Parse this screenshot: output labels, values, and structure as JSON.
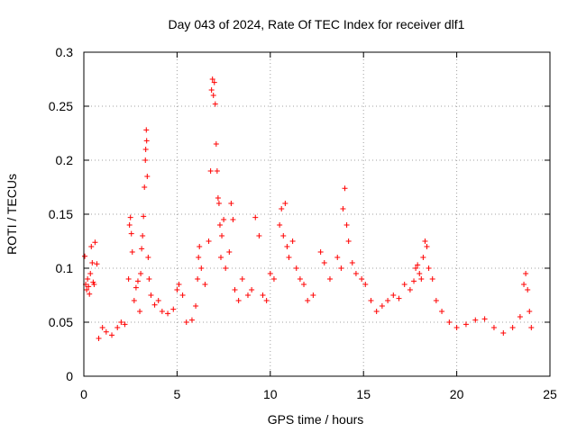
{
  "chart_data": {
    "type": "scatter",
    "title": "Day 043 of 2024, Rate Of TEC Index for receiver dlf1",
    "xlabel": "GPS time / hours",
    "ylabel": "ROTI / TECUs",
    "xlim": [
      0,
      25
    ],
    "ylim": [
      0,
      0.3
    ],
    "xticks": [
      0,
      5,
      10,
      15,
      20,
      25
    ],
    "xtick_labels": [
      "0",
      "5",
      "10",
      "15",
      "20",
      "25"
    ],
    "yticks": [
      0,
      0.05,
      0.1,
      0.15,
      0.2,
      0.25,
      0.3
    ],
    "ytick_labels": [
      "0",
      "0.05",
      "0.1",
      "0.15",
      "0.2",
      "0.25",
      "0.3"
    ],
    "grid": true,
    "marker": "+",
    "color": "#ff0000",
    "series": [
      {
        "points": [
          [
            0.05,
            0.111
          ],
          [
            0.1,
            0.085
          ],
          [
            0.15,
            0.08
          ],
          [
            0.2,
            0.09
          ],
          [
            0.25,
            0.083
          ],
          [
            0.3,
            0.076
          ],
          [
            0.35,
            0.095
          ],
          [
            0.4,
            0.12
          ],
          [
            0.45,
            0.105
          ],
          [
            0.5,
            0.087
          ],
          [
            0.55,
            0.085
          ],
          [
            0.6,
            0.124
          ],
          [
            0.7,
            0.104
          ],
          [
            0.8,
            0.035
          ],
          [
            1.0,
            0.045
          ],
          [
            1.2,
            0.041
          ],
          [
            1.5,
            0.038
          ],
          [
            1.8,
            0.045
          ],
          [
            2.0,
            0.05
          ],
          [
            2.2,
            0.048
          ],
          [
            2.4,
            0.09
          ],
          [
            2.45,
            0.14
          ],
          [
            2.5,
            0.147
          ],
          [
            2.55,
            0.132
          ],
          [
            2.6,
            0.115
          ],
          [
            2.7,
            0.07
          ],
          [
            2.8,
            0.082
          ],
          [
            2.9,
            0.088
          ],
          [
            3.0,
            0.06
          ],
          [
            3.05,
            0.095
          ],
          [
            3.1,
            0.118
          ],
          [
            3.15,
            0.13
          ],
          [
            3.2,
            0.148
          ],
          [
            3.25,
            0.175
          ],
          [
            3.3,
            0.2
          ],
          [
            3.32,
            0.21
          ],
          [
            3.35,
            0.228
          ],
          [
            3.37,
            0.218
          ],
          [
            3.4,
            0.185
          ],
          [
            3.45,
            0.11
          ],
          [
            3.5,
            0.09
          ],
          [
            3.6,
            0.075
          ],
          [
            3.8,
            0.066
          ],
          [
            4.0,
            0.07
          ],
          [
            4.2,
            0.06
          ],
          [
            4.5,
            0.058
          ],
          [
            4.8,
            0.062
          ],
          [
            5.0,
            0.08
          ],
          [
            5.1,
            0.085
          ],
          [
            5.3,
            0.075
          ],
          [
            5.5,
            0.05
          ],
          [
            5.8,
            0.052
          ],
          [
            6.0,
            0.065
          ],
          [
            6.1,
            0.09
          ],
          [
            6.15,
            0.11
          ],
          [
            6.2,
            0.12
          ],
          [
            6.3,
            0.1
          ],
          [
            6.5,
            0.085
          ],
          [
            6.7,
            0.125
          ],
          [
            6.8,
            0.19
          ],
          [
            6.85,
            0.265
          ],
          [
            6.9,
            0.275
          ],
          [
            6.95,
            0.26
          ],
          [
            7.0,
            0.272
          ],
          [
            7.05,
            0.252
          ],
          [
            7.1,
            0.215
          ],
          [
            7.15,
            0.19
          ],
          [
            7.2,
            0.165
          ],
          [
            7.25,
            0.16
          ],
          [
            7.3,
            0.14
          ],
          [
            7.35,
            0.11
          ],
          [
            7.4,
            0.13
          ],
          [
            7.5,
            0.145
          ],
          [
            7.6,
            0.1
          ],
          [
            7.8,
            0.115
          ],
          [
            7.9,
            0.16
          ],
          [
            8.0,
            0.145
          ],
          [
            8.1,
            0.08
          ],
          [
            8.3,
            0.07
          ],
          [
            8.5,
            0.09
          ],
          [
            8.8,
            0.075
          ],
          [
            9.0,
            0.08
          ],
          [
            9.2,
            0.147
          ],
          [
            9.4,
            0.13
          ],
          [
            9.6,
            0.075
          ],
          [
            9.8,
            0.07
          ],
          [
            10.0,
            0.095
          ],
          [
            10.2,
            0.09
          ],
          [
            10.5,
            0.14
          ],
          [
            10.6,
            0.155
          ],
          [
            10.7,
            0.13
          ],
          [
            10.8,
            0.16
          ],
          [
            10.9,
            0.12
          ],
          [
            11.0,
            0.11
          ],
          [
            11.2,
            0.125
          ],
          [
            11.4,
            0.1
          ],
          [
            11.6,
            0.09
          ],
          [
            11.8,
            0.085
          ],
          [
            12.0,
            0.07
          ],
          [
            12.3,
            0.075
          ],
          [
            12.7,
            0.115
          ],
          [
            12.9,
            0.105
          ],
          [
            13.2,
            0.09
          ],
          [
            13.6,
            0.11
          ],
          [
            13.8,
            0.1
          ],
          [
            13.9,
            0.155
          ],
          [
            14.0,
            0.174
          ],
          [
            14.1,
            0.14
          ],
          [
            14.2,
            0.125
          ],
          [
            14.4,
            0.105
          ],
          [
            14.6,
            0.095
          ],
          [
            14.9,
            0.09
          ],
          [
            15.1,
            0.085
          ],
          [
            15.4,
            0.07
          ],
          [
            15.7,
            0.06
          ],
          [
            16.0,
            0.065
          ],
          [
            16.3,
            0.07
          ],
          [
            16.6,
            0.075
          ],
          [
            16.9,
            0.072
          ],
          [
            17.2,
            0.085
          ],
          [
            17.5,
            0.08
          ],
          [
            17.7,
            0.088
          ],
          [
            17.8,
            0.1
          ],
          [
            17.9,
            0.103
          ],
          [
            18.0,
            0.095
          ],
          [
            18.1,
            0.09
          ],
          [
            18.2,
            0.11
          ],
          [
            18.3,
            0.125
          ],
          [
            18.4,
            0.12
          ],
          [
            18.5,
            0.1
          ],
          [
            18.7,
            0.09
          ],
          [
            18.9,
            0.07
          ],
          [
            19.2,
            0.06
          ],
          [
            19.6,
            0.05
          ],
          [
            20.0,
            0.045
          ],
          [
            20.5,
            0.048
          ],
          [
            21.0,
            0.052
          ],
          [
            21.5,
            0.053
          ],
          [
            22.0,
            0.045
          ],
          [
            22.5,
            0.04
          ],
          [
            23.0,
            0.045
          ],
          [
            23.4,
            0.055
          ],
          [
            23.6,
            0.085
          ],
          [
            23.7,
            0.095
          ],
          [
            23.8,
            0.08
          ],
          [
            23.9,
            0.06
          ],
          [
            24.0,
            0.045
          ]
        ]
      }
    ]
  }
}
